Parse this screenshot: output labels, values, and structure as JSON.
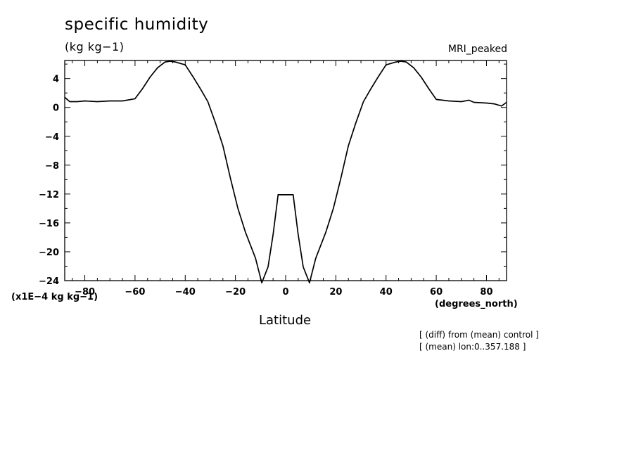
{
  "chart_data": {
    "type": "line",
    "title": "specific humidity",
    "units": "(kg kg−1)",
    "model_label": "MRI_peaked",
    "scale_label": "(x1E−4 kg kg−1)",
    "xunits": "(degrees_north)",
    "xlabel": "Latitude",
    "notes": [
      "[ (diff) from (mean) control ]",
      "[ (mean) lon:0..357.188 ]"
    ],
    "xlim": [
      -88,
      88
    ],
    "ylim": [
      -24,
      6.5
    ],
    "xticks": [
      -80,
      -60,
      -40,
      -20,
      0,
      20,
      40,
      60,
      80
    ],
    "xtick_labels": [
      "−80",
      "−60",
      "−40",
      "−20",
      "0",
      "20",
      "40",
      "60",
      "80"
    ],
    "yticks": [
      4,
      0,
      -4,
      -8,
      -12,
      -16,
      -20,
      -24
    ],
    "ytick_labels": [
      "4",
      "0",
      "−4",
      "−8",
      "−12",
      "−16",
      "−20",
      "−24"
    ],
    "grid": false,
    "series": [
      {
        "x": [
          -88,
          -86,
          -83,
          -80,
          -75,
          -70,
          -65,
          -60,
          -57,
          -54,
          -51,
          -48,
          -46,
          -44,
          -40,
          -37,
          -34,
          -31,
          -28,
          -25,
          -22,
          -19,
          -16,
          -12,
          -9.5,
          -7,
          -5,
          -3,
          -1,
          1,
          3,
          5,
          7,
          9.5,
          12,
          16,
          19,
          22,
          25,
          28,
          31,
          34,
          37,
          40,
          44,
          46,
          48,
          51,
          54,
          57,
          60,
          65,
          70,
          73,
          75,
          80,
          83,
          86,
          88
        ],
        "y": [
          1.4,
          0.8,
          0.8,
          0.9,
          0.8,
          0.9,
          0.9,
          1.2,
          2.6,
          4.2,
          5.5,
          6.3,
          6.4,
          6.3,
          5.9,
          4.3,
          2.6,
          0.8,
          -2.1,
          -5.3,
          -9.8,
          -14.0,
          -17.3,
          -20.9,
          -24.3,
          -22.1,
          -17.6,
          -12.1,
          -12.1,
          -12.1,
          -12.1,
          -17.6,
          -22.1,
          -24.3,
          -20.9,
          -17.3,
          -14.0,
          -9.8,
          -5.3,
          -2.1,
          0.8,
          2.6,
          4.3,
          5.9,
          6.3,
          6.4,
          6.3,
          5.5,
          4.2,
          2.6,
          1.1,
          0.9,
          0.8,
          1.0,
          0.7,
          0.6,
          0.5,
          0.2,
          0.7
        ]
      }
    ]
  }
}
